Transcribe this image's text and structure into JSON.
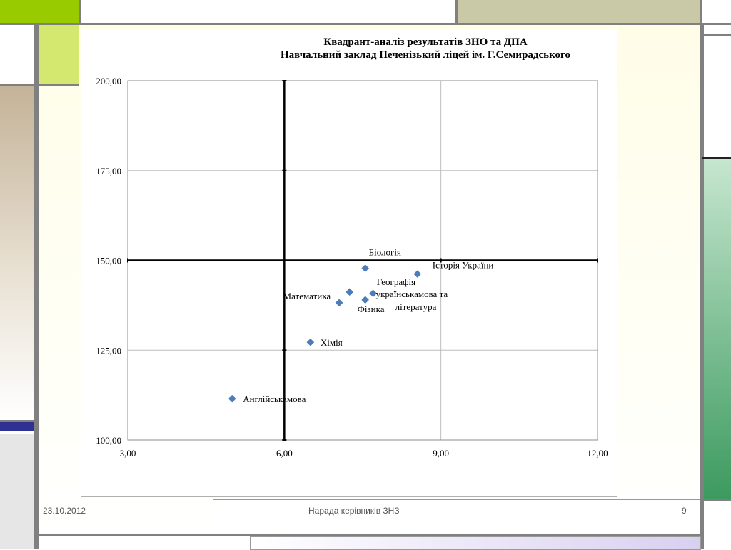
{
  "slide": {
    "footer_date": "23.10.2012",
    "footer_title": "Нарада керівників ЗНЗ",
    "page_number": "9",
    "colors": {
      "green_block": "#99cc00",
      "olive_block": "#c9c9a8",
      "tan_bar": "#c4b398",
      "blue_bar": "#2e3192",
      "right_green_top": "#c6e6cf",
      "right_green_bottom": "#3c9a5f",
      "marker": "#4a7ebb"
    }
  },
  "chart_data": {
    "type": "scatter",
    "title": "Квадрант-аналіз результатів ЗНО та ДПА",
    "subtitle": "Навчальний заклад  Печенізький ліцей ім. Г.Семирадського",
    "xlabel": "",
    "ylabel": "",
    "xlim": [
      3,
      12
    ],
    "ylim": [
      100,
      200
    ],
    "xticks": [
      "3,00",
      "6,00",
      "9,00",
      "12,00"
    ],
    "yticks": [
      "100,00",
      "125,00",
      "150,00",
      "175,00",
      "200,00"
    ],
    "grid": true,
    "quadrant_lines": {
      "x": 6,
      "y": 150
    },
    "points": [
      {
        "label": "Біологія",
        "x": 7.55,
        "y": 147.8
      },
      {
        "label": "Історія України",
        "x": 8.55,
        "y": 146.2
      },
      {
        "label": "Географія",
        "x": 7.25,
        "y": 141.2
      },
      {
        "label": "українськамова та",
        "label2": "література",
        "x": 7.7,
        "y": 140.8
      },
      {
        "label": "Математика",
        "x": 7.05,
        "y": 138.2
      },
      {
        "label": "Фізика",
        "x": 7.55,
        "y": 139.0
      },
      {
        "label": "Хімія",
        "x": 6.5,
        "y": 127.2
      },
      {
        "label": "Англійськамова",
        "x": 5.0,
        "y": 111.5
      }
    ]
  }
}
